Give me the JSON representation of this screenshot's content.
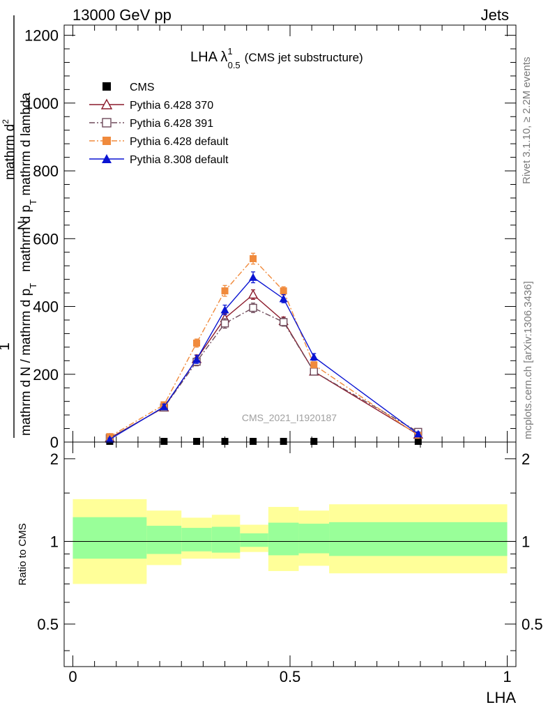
{
  "header": {
    "left": "13000 GeV pp",
    "right": "Jets",
    "side_top": "Rivet 3.1.10, ≥ 2.2M events",
    "side_bottom": "mcplots.cern.ch [arXiv:1306.3436]"
  },
  "chart_data": [
    {
      "type": "line",
      "panel": "main",
      "title_main": "LHA λ",
      "title_sup": "1",
      "title_sub": "0.5",
      "title_paren": "(CMS jet substructure)",
      "watermark": "CMS_2021_I1920187",
      "ylabel_numer_top": "1",
      "ylabel_denom_top": "mathrm d N / mathrm d p",
      "ylabel_denom_top_sub": "T",
      "ylabel_numer_bottom": "mathrm d",
      "ylabel_numer_bottom_sup": "2",
      "ylabel_numer_bottom_end": "N",
      "ylabel_denom_bottom": "mathrm d p",
      "ylabel_denom_bottom_sub": "T",
      "ylabel_denom_bottom_end": " mathrm d lambda",
      "xlim": [
        -0.02,
        1.02
      ],
      "ylim": [
        0,
        1230
      ],
      "yticks": [
        0,
        200,
        400,
        600,
        800,
        1000,
        1200
      ],
      "yticklabels": [
        "0",
        "200",
        "400",
        "600",
        "800",
        "1000",
        "1200"
      ],
      "legend_position": "top-left",
      "series": [
        {
          "name": "CMS",
          "color": "#000000",
          "marker": "square-filled",
          "line": "none",
          "x": [
            0.085,
            0.21,
            0.285,
            0.35,
            0.415,
            0.485,
            0.555,
            0.795
          ],
          "y": [
            0.5,
            0.5,
            0.5,
            0.5,
            0.5,
            0.5,
            0.5,
            0.5
          ]
        },
        {
          "name": "Pythia 6.428 370",
          "color": "#8b1a2b",
          "marker": "triangle-open",
          "line": "solid",
          "x": [
            0.085,
            0.21,
            0.285,
            0.35,
            0.415,
            0.485,
            0.555,
            0.795
          ],
          "y": [
            12,
            102,
            245,
            365,
            435,
            357,
            208,
            22
          ],
          "err": [
            4,
            8,
            12,
            14,
            14,
            12,
            8,
            6
          ]
        },
        {
          "name": "Pythia 6.428 391",
          "color": "#6e4a5a",
          "marker": "square-open",
          "line": "dashdot",
          "x": [
            0.085,
            0.21,
            0.285,
            0.35,
            0.415,
            0.485,
            0.555,
            0.795
          ],
          "y": [
            12,
            102,
            237,
            350,
            396,
            354,
            208,
            30
          ],
          "err": [
            4,
            8,
            12,
            14,
            14,
            12,
            8,
            6
          ]
        },
        {
          "name": "Pythia 6.428 default",
          "color": "#f08a3c",
          "marker": "square-filled",
          "line": "dashdot",
          "x": [
            0.085,
            0.21,
            0.285,
            0.35,
            0.415,
            0.485,
            0.555,
            0.795
          ],
          "y": [
            16,
            110,
            292,
            446,
            541,
            446,
            228,
            20
          ],
          "err": [
            4,
            8,
            12,
            16,
            16,
            12,
            8,
            6
          ]
        },
        {
          "name": "Pythia 8.308 default",
          "color": "#0a14d2",
          "marker": "triangle-filled",
          "line": "solid",
          "x": [
            0.085,
            0.21,
            0.285,
            0.35,
            0.415,
            0.485,
            0.555,
            0.795
          ],
          "y": [
            8,
            104,
            244,
            390,
            486,
            423,
            251,
            24
          ],
          "err": [
            4,
            8,
            12,
            14,
            16,
            12,
            10,
            6
          ]
        }
      ]
    },
    {
      "type": "area",
      "panel": "ratio",
      "ylabel": "Ratio to CMS",
      "xlabel": "LHA",
      "xlim": [
        -0.02,
        1.02
      ],
      "ylim": [
        0.35,
        2.3
      ],
      "xticks": [
        0,
        0.5,
        1
      ],
      "xticklabels": [
        "0",
        "0.5",
        "1"
      ],
      "yticks": [
        0.5,
        1,
        2
      ],
      "yticklabels": [
        "0.5",
        "1",
        "2"
      ],
      "reference_line": 1,
      "bins": [
        {
          "x0": 0.0,
          "x1": 0.17,
          "inner": [
            0.865,
            1.225
          ],
          "outer": [
            0.7,
            1.425
          ]
        },
        {
          "x0": 0.17,
          "x1": 0.25,
          "inner": [
            0.9,
            1.14
          ],
          "outer": [
            0.82,
            1.295
          ]
        },
        {
          "x0": 0.25,
          "x1": 0.32,
          "inner": [
            0.92,
            1.12
          ],
          "outer": [
            0.865,
            1.22
          ]
        },
        {
          "x0": 0.32,
          "x1": 0.385,
          "inner": [
            0.91,
            1.13
          ],
          "outer": [
            0.865,
            1.25
          ]
        },
        {
          "x0": 0.385,
          "x1": 0.45,
          "inner": [
            0.955,
            1.07
          ],
          "outer": [
            0.915,
            1.15
          ]
        },
        {
          "x0": 0.45,
          "x1": 0.52,
          "inner": [
            0.89,
            1.17
          ],
          "outer": [
            0.78,
            1.335
          ]
        },
        {
          "x0": 0.52,
          "x1": 0.59,
          "inner": [
            0.905,
            1.16
          ],
          "outer": [
            0.815,
            1.295
          ]
        },
        {
          "x0": 0.59,
          "x1": 1.0,
          "inner": [
            0.885,
            1.175
          ],
          "outer": [
            0.765,
            1.365
          ]
        }
      ],
      "inner_color": "#99ff99",
      "outer_color": "#ffff99"
    }
  ]
}
